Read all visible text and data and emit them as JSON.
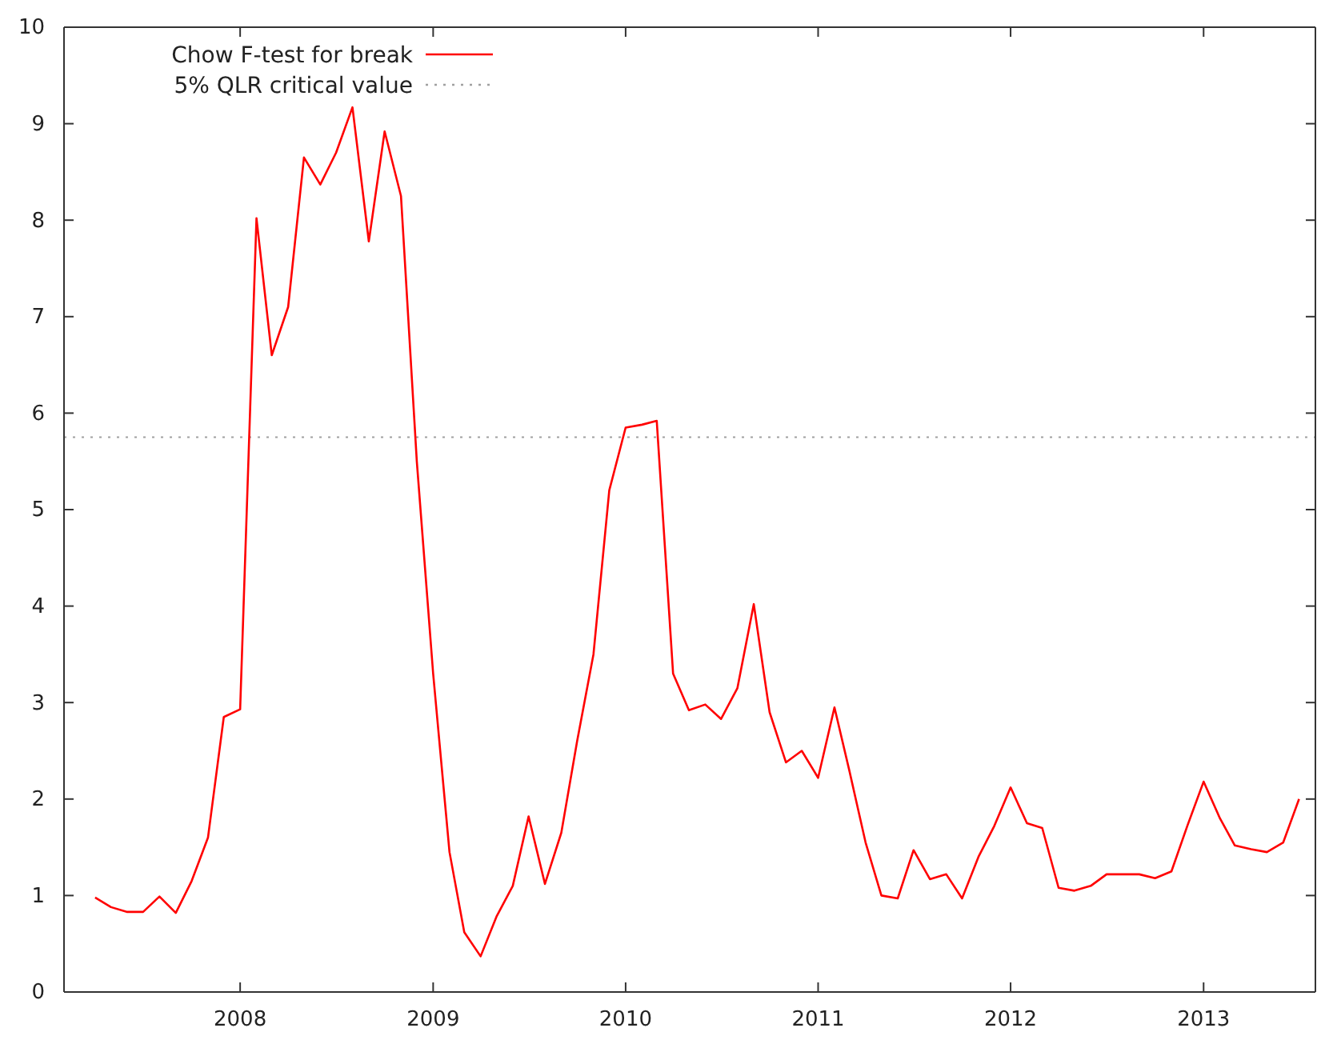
{
  "chart_data": {
    "type": "line",
    "x": [
      "2007-04",
      "2007-05",
      "2007-06",
      "2007-07",
      "2007-08",
      "2007-09",
      "2007-10",
      "2007-11",
      "2007-12",
      "2008-01",
      "2008-02",
      "2008-03",
      "2008-04",
      "2008-05",
      "2008-06",
      "2008-07",
      "2008-08",
      "2008-09",
      "2008-10",
      "2008-11",
      "2008-12",
      "2009-01",
      "2009-02",
      "2009-03",
      "2009-04",
      "2009-05",
      "2009-06",
      "2009-07",
      "2009-08",
      "2009-09",
      "2009-10",
      "2009-11",
      "2009-12",
      "2010-01",
      "2010-02",
      "2010-03",
      "2010-04",
      "2010-05",
      "2010-06",
      "2010-07",
      "2010-08",
      "2010-09",
      "2010-10",
      "2010-11",
      "2010-12",
      "2011-01",
      "2011-02",
      "2011-03",
      "2011-04",
      "2011-05",
      "2011-06",
      "2011-07",
      "2011-08",
      "2011-09",
      "2011-10",
      "2011-11",
      "2011-12",
      "2012-01",
      "2012-02",
      "2012-03",
      "2012-04",
      "2012-05",
      "2012-06",
      "2012-07",
      "2012-08",
      "2012-09",
      "2012-10",
      "2012-11",
      "2012-12",
      "2013-01",
      "2013-02",
      "2013-03",
      "2013-04",
      "2013-05",
      "2013-06",
      "2013-07"
    ],
    "series": [
      {
        "name": "Chow F-test for break",
        "color": "#ff0000",
        "values": [
          0.98,
          0.88,
          0.83,
          0.83,
          0.99,
          0.82,
          1.15,
          1.6,
          2.85,
          2.93,
          8.02,
          6.6,
          7.1,
          8.65,
          8.37,
          8.7,
          9.17,
          7.78,
          8.92,
          8.25,
          5.5,
          3.3,
          1.45,
          0.62,
          0.37,
          0.78,
          1.1,
          1.82,
          1.12,
          1.65,
          2.6,
          3.5,
          5.2,
          5.85,
          5.88,
          5.92,
          3.3,
          2.92,
          2.98,
          2.83,
          3.15,
          4.02,
          2.9,
          2.38,
          2.5,
          2.22,
          2.95,
          2.3,
          1.55,
          1.0,
          0.97,
          1.47,
          1.17,
          1.22,
          0.97,
          1.4,
          1.72,
          2.12,
          1.75,
          1.7,
          1.08,
          1.05,
          1.1,
          1.22,
          1.22,
          1.22,
          1.18,
          1.25,
          1.72,
          2.18,
          1.8,
          1.52,
          1.48,
          1.45,
          1.55,
          2.0
        ]
      }
    ],
    "xlim": [
      "2007-02",
      "2013-08"
    ],
    "xticks": [
      {
        "value": "2008",
        "label": "2008"
      },
      {
        "value": "2009",
        "label": "2009"
      },
      {
        "value": "2010",
        "label": "2010"
      },
      {
        "value": "2011",
        "label": "2011"
      },
      {
        "value": "2012",
        "label": "2012"
      },
      {
        "value": "2013",
        "label": "2013"
      }
    ],
    "ylim": [
      0,
      10
    ],
    "yticks": [
      0,
      1,
      2,
      3,
      4,
      5,
      6,
      7,
      8,
      9,
      10
    ],
    "ref_lines": [
      {
        "axis": "y",
        "value": 5.75,
        "label": "5% QLR critical value",
        "color": "#a0a0a0",
        "line_style": "dotted"
      }
    ],
    "legend": "top left",
    "grid": false,
    "marker": "none",
    "line_style": "solid"
  }
}
